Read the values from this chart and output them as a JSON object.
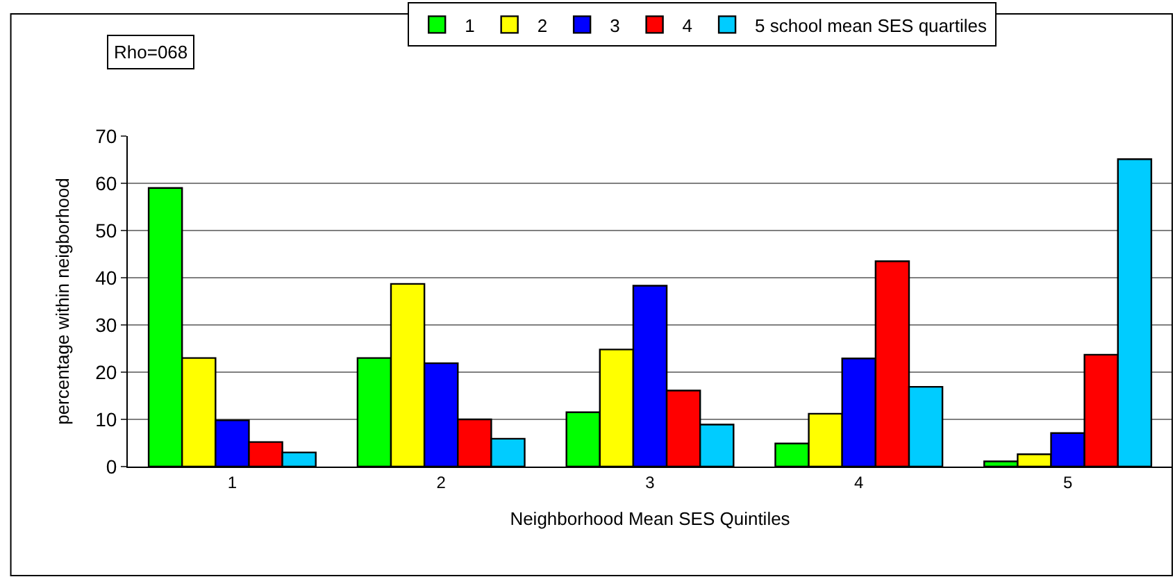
{
  "chart_data": {
    "type": "bar",
    "xlabel": "Neighborhood Mean SES Quintiles",
    "ylabel": "percentage within neigborhood",
    "categories": [
      "1",
      "2",
      "3",
      "4",
      "5"
    ],
    "series": [
      {
        "name": "1",
        "color": "#00ff00",
        "values": [
          59,
          23,
          11.5,
          4.9,
          1.1
        ]
      },
      {
        "name": "2",
        "color": "#ffff00",
        "values": [
          23,
          38.7,
          24.8,
          11.2,
          2.6
        ]
      },
      {
        "name": "3",
        "color": "#0000ff",
        "values": [
          9.8,
          21.9,
          38.3,
          22.9,
          7.1
        ]
      },
      {
        "name": "4",
        "color": "#ff0000",
        "values": [
          5.2,
          10,
          16.1,
          43.5,
          23.7
        ]
      },
      {
        "name": "5 school mean SES quartiles",
        "color": "#00ccff",
        "values": [
          3,
          5.9,
          8.9,
          16.9,
          65.1
        ]
      }
    ],
    "ylim": [
      0,
      70
    ],
    "yticks": [
      0,
      10,
      20,
      30,
      40,
      50,
      60,
      70
    ],
    "grid": "y",
    "legend": "top",
    "annotations": [
      "Rho=068"
    ]
  }
}
